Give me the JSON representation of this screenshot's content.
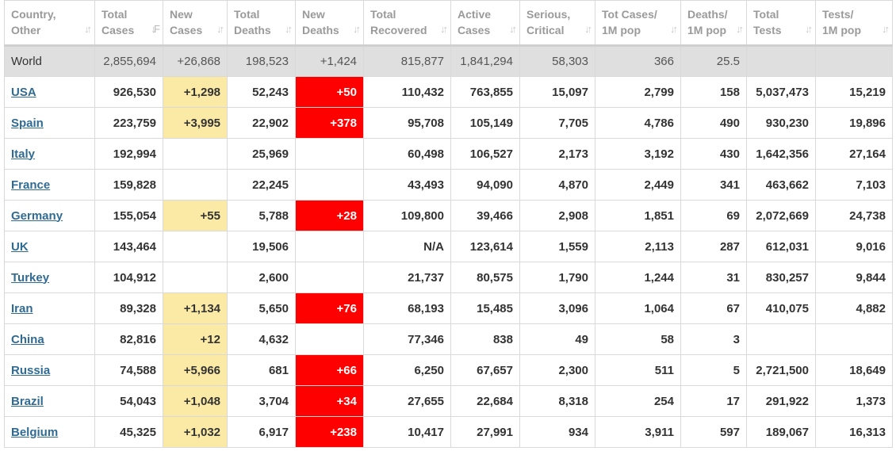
{
  "columns": [
    {
      "key": "country",
      "line1": "Country,",
      "line2": "Other"
    },
    {
      "key": "total_cases",
      "line1": "Total",
      "line2": "Cases"
    },
    {
      "key": "new_cases",
      "line1": "New",
      "line2": "Cases"
    },
    {
      "key": "total_deaths",
      "line1": "Total",
      "line2": "Deaths"
    },
    {
      "key": "new_deaths",
      "line1": "New",
      "line2": "Deaths"
    },
    {
      "key": "total_recovered",
      "line1": "Total",
      "line2": "Recovered"
    },
    {
      "key": "active_cases",
      "line1": "Active",
      "line2": "Cases"
    },
    {
      "key": "serious_critical",
      "line1": "Serious,",
      "line2": "Critical"
    },
    {
      "key": "tot_cases_1m",
      "line1": "Tot Cases/",
      "line2": "1M pop"
    },
    {
      "key": "deaths_1m",
      "line1": "Deaths/",
      "line2": "1M pop"
    },
    {
      "key": "total_tests",
      "line1": "Total",
      "line2": "Tests"
    },
    {
      "key": "tests_1m",
      "line1": "Tests/",
      "line2": "1M pop"
    }
  ],
  "world": {
    "country": "World",
    "total_cases": "2,855,694",
    "new_cases": "+26,868",
    "total_deaths": "198,523",
    "new_deaths": "+1,424",
    "total_recovered": "815,877",
    "active_cases": "1,841,294",
    "serious_critical": "58,303",
    "tot_cases_1m": "366",
    "deaths_1m": "25.5",
    "total_tests": "",
    "tests_1m": ""
  },
  "rows": [
    {
      "country": "USA",
      "total_cases": "926,530",
      "new_cases": "+1,298",
      "total_deaths": "52,243",
      "new_deaths": "+50",
      "total_recovered": "110,432",
      "active_cases": "763,855",
      "serious_critical": "15,097",
      "tot_cases_1m": "2,799",
      "deaths_1m": "158",
      "total_tests": "5,037,473",
      "tests_1m": "15,219"
    },
    {
      "country": "Spain",
      "total_cases": "223,759",
      "new_cases": "+3,995",
      "total_deaths": "22,902",
      "new_deaths": "+378",
      "total_recovered": "95,708",
      "active_cases": "105,149",
      "serious_critical": "7,705",
      "tot_cases_1m": "4,786",
      "deaths_1m": "490",
      "total_tests": "930,230",
      "tests_1m": "19,896"
    },
    {
      "country": "Italy",
      "total_cases": "192,994",
      "new_cases": "",
      "total_deaths": "25,969",
      "new_deaths": "",
      "total_recovered": "60,498",
      "active_cases": "106,527",
      "serious_critical": "2,173",
      "tot_cases_1m": "3,192",
      "deaths_1m": "430",
      "total_tests": "1,642,356",
      "tests_1m": "27,164"
    },
    {
      "country": "France",
      "total_cases": "159,828",
      "new_cases": "",
      "total_deaths": "22,245",
      "new_deaths": "",
      "total_recovered": "43,493",
      "active_cases": "94,090",
      "serious_critical": "4,870",
      "tot_cases_1m": "2,449",
      "deaths_1m": "341",
      "total_tests": "463,662",
      "tests_1m": "7,103"
    },
    {
      "country": "Germany",
      "total_cases": "155,054",
      "new_cases": "+55",
      "total_deaths": "5,788",
      "new_deaths": "+28",
      "total_recovered": "109,800",
      "active_cases": "39,466",
      "serious_critical": "2,908",
      "tot_cases_1m": "1,851",
      "deaths_1m": "69",
      "total_tests": "2,072,669",
      "tests_1m": "24,738"
    },
    {
      "country": "UK",
      "total_cases": "143,464",
      "new_cases": "",
      "total_deaths": "19,506",
      "new_deaths": "",
      "total_recovered": "N/A",
      "active_cases": "123,614",
      "serious_critical": "1,559",
      "tot_cases_1m": "2,113",
      "deaths_1m": "287",
      "total_tests": "612,031",
      "tests_1m": "9,016"
    },
    {
      "country": "Turkey",
      "total_cases": "104,912",
      "new_cases": "",
      "total_deaths": "2,600",
      "new_deaths": "",
      "total_recovered": "21,737",
      "active_cases": "80,575",
      "serious_critical": "1,790",
      "tot_cases_1m": "1,244",
      "deaths_1m": "31",
      "total_tests": "830,257",
      "tests_1m": "9,844"
    },
    {
      "country": "Iran",
      "total_cases": "89,328",
      "new_cases": "+1,134",
      "total_deaths": "5,650",
      "new_deaths": "+76",
      "total_recovered": "68,193",
      "active_cases": "15,485",
      "serious_critical": "3,096",
      "tot_cases_1m": "1,064",
      "deaths_1m": "67",
      "total_tests": "410,075",
      "tests_1m": "4,882"
    },
    {
      "country": "China",
      "total_cases": "82,816",
      "new_cases": "+12",
      "total_deaths": "4,632",
      "new_deaths": "",
      "total_recovered": "77,346",
      "active_cases": "838",
      "serious_critical": "49",
      "tot_cases_1m": "58",
      "deaths_1m": "3",
      "total_tests": "",
      "tests_1m": ""
    },
    {
      "country": "Russia",
      "total_cases": "74,588",
      "new_cases": "+5,966",
      "total_deaths": "681",
      "new_deaths": "+66",
      "total_recovered": "6,250",
      "active_cases": "67,657",
      "serious_critical": "2,300",
      "tot_cases_1m": "511",
      "deaths_1m": "5",
      "total_tests": "2,721,500",
      "tests_1m": "18,649"
    },
    {
      "country": "Brazil",
      "total_cases": "54,043",
      "new_cases": "+1,048",
      "total_deaths": "3,704",
      "new_deaths": "+34",
      "total_recovered": "27,655",
      "active_cases": "22,684",
      "serious_critical": "8,318",
      "tot_cases_1m": "254",
      "deaths_1m": "17",
      "total_tests": "291,922",
      "tests_1m": "1,373"
    },
    {
      "country": "Belgium",
      "total_cases": "45,325",
      "new_cases": "+1,032",
      "total_deaths": "6,917",
      "new_deaths": "+238",
      "total_recovered": "10,417",
      "active_cases": "27,991",
      "serious_critical": "934",
      "tot_cases_1m": "3,911",
      "deaths_1m": "597",
      "total_tests": "189,067",
      "tests_1m": "16,313"
    }
  ],
  "colors": {
    "new_cases_highlight": "#fbeaa6",
    "new_deaths_highlight": "#ff0000",
    "link": "#306b93",
    "world_row": "#dfdfdf"
  }
}
